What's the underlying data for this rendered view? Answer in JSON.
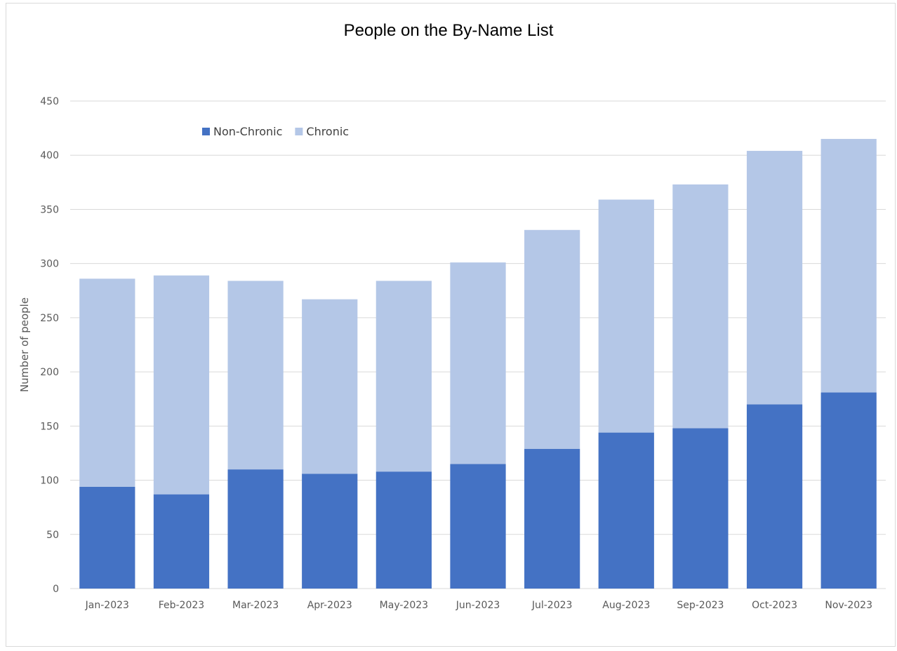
{
  "chart_data": {
    "type": "bar",
    "stacked": true,
    "title": "People on the By-Name List",
    "xlabel": "",
    "ylabel": "Number of people",
    "ylim": [
      0,
      450
    ],
    "yticks": [
      0,
      50,
      100,
      150,
      200,
      250,
      300,
      350,
      400,
      450
    ],
    "grid": true,
    "legend_position": "top-left",
    "categories": [
      "Jan-2023",
      "Feb-2023",
      "Mar-2023",
      "Apr-2023",
      "May-2023",
      "Jun-2023",
      "Jul-2023",
      "Aug-2023",
      "Sep-2023",
      "Oct-2023",
      "Nov-2023"
    ],
    "series": [
      {
        "name": "Non-Chronic",
        "color": "#4472c4",
        "values": [
          94,
          87,
          110,
          106,
          108,
          115,
          129,
          144,
          148,
          170,
          181
        ]
      },
      {
        "name": "Chronic",
        "color": "#b4c7e7",
        "values": [
          192,
          202,
          174,
          161,
          176,
          186,
          202,
          215,
          225,
          234,
          234
        ]
      }
    ]
  }
}
